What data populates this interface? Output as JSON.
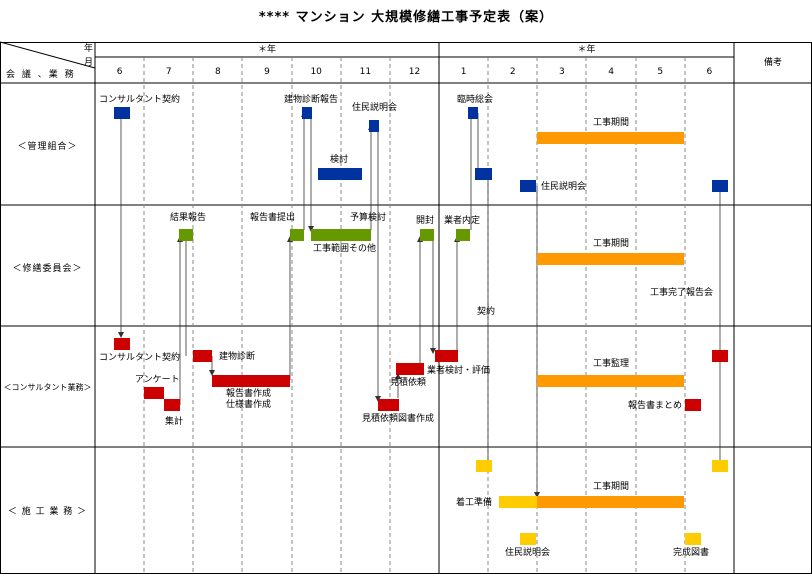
{
  "title": "**** マンション 大規模修繕工事予定表（案）",
  "header": {
    "year_label": "年",
    "month_label": "月",
    "row_header": "会 議 、業 務",
    "year1": "＊年",
    "year2": "＊年",
    "remarks": "備考",
    "months": [
      "6",
      "7",
      "8",
      "9",
      "10",
      "11",
      "12",
      "1",
      "2",
      "3",
      "4",
      "5",
      "6"
    ]
  },
  "rows": {
    "kanri": "＜管理組合＞",
    "shuzen": "＜修繕委員会＞",
    "consul": "＜コンサルタント業務＞",
    "seko": "＜ 施 工 業 務 ＞"
  },
  "labels": {
    "kanri_consul_contract": "コンサルタント契約",
    "kanri_diag_report": "建物診断報告",
    "kanri_resident_briefing": "住民説明会",
    "kanri_extra_meeting": "臨時総会",
    "kanri_review": "検討",
    "kanri_work_period": "工事期間",
    "kanri_resident_briefing2": "住民説明会",
    "shuzen_result_report": "結果報告",
    "shuzen_report_submit": "報告書提出",
    "shuzen_budget_review": "予算検討",
    "shuzen_scope": "工事範囲その他",
    "shuzen_opening": "開封",
    "shuzen_contractor": "業者内定",
    "shuzen_work_period": "工事期間",
    "shuzen_completion_report": "工事完了報告会",
    "contract": "契約",
    "consul_contract": "コンサルタント契約",
    "consul_diag": "建物診断",
    "consul_survey": "アンケート",
    "consul_tally": "集計",
    "consul_report": "報告書作成",
    "consul_spec": "仕様書作成",
    "consul_estimate": "見積依頼",
    "consul_estimate_docs": "見積依頼図書作成",
    "consul_eval": "業者検討・評価",
    "consul_supervision": "工事監理",
    "consul_summary": "報告書まとめ",
    "seko_prep": "着工準備",
    "seko_work_period": "工事期間",
    "seko_briefing": "住民説明会",
    "seko_completion_docs": "完成図書"
  },
  "colors": {
    "blue": "#0033a0",
    "green": "#669900",
    "red": "#cc0000",
    "orange": "#ff9900",
    "yellow": "#ffcc00"
  }
}
